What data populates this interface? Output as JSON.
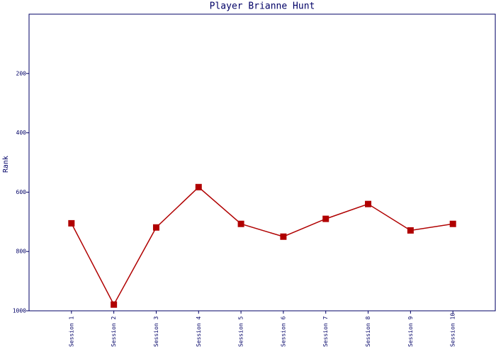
{
  "chart_data": {
    "type": "line",
    "title": "Player Brianne Hunt",
    "y_label": "Rank",
    "categories": [
      "Session 1",
      "Session 2",
      "Session 3",
      "Session 4",
      "Session 5",
      "Session 6",
      "Session 7",
      "Session 8",
      "Session 9",
      "Session 10"
    ],
    "series": [
      {
        "name": "Rank",
        "color": "#b00000",
        "values": [
          705,
          979,
          719,
          583,
          707,
          750,
          690,
          640,
          729,
          707
        ]
      }
    ],
    "ylim": [
      1000,
      0
    ],
    "yticks": [
      200,
      400,
      600,
      800,
      1000
    ],
    "grid": false
  }
}
